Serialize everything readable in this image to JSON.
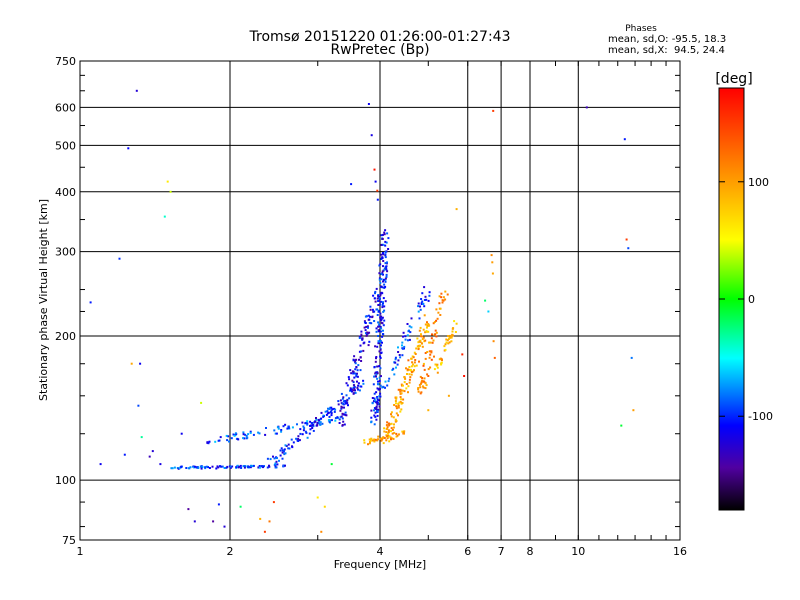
{
  "chart_data": {
    "type": "scatter",
    "title": "Tromsø 20151220 01:26:00-01:27:43",
    "subtitle": "RwPretec (Bp)",
    "xlabel": "Frequency [MHz]",
    "ylabel": "Stationary phase Virtual Height [km]",
    "x_scale": "log",
    "y_scale": "log",
    "xlim": [
      1,
      16
    ],
    "ylim": [
      75,
      750
    ],
    "x_ticks": [
      1,
      2,
      4,
      6,
      8,
      10,
      16
    ],
    "x_ticks_labels": [
      "1",
      "2",
      "4",
      "6",
      "8",
      "10",
      "16"
    ],
    "x_minor_ticks": [
      7
    ],
    "x_minor_labels": [
      "7"
    ],
    "y_ticks": [
      75,
      100,
      200,
      300,
      400,
      500,
      600,
      750
    ],
    "y_ticks_labels": [
      "75",
      "100",
      "200",
      "300",
      "400",
      "500",
      "600",
      "750"
    ],
    "grid": true,
    "phase_box": {
      "title": "Phases",
      "line1": "mean, sd,O: -95.5, 18.3",
      "line2": "mean, sd,X:  94.5, 24.4"
    },
    "colorbar": {
      "label": "[deg]",
      "min": -180,
      "max": 180,
      "ticks": [
        100,
        0,
        -100
      ],
      "ticks_labels": [
        "100",
        "0",
        "-100"
      ]
    },
    "series": [
      {
        "traces": [
          {
            "f_start": 1.5,
            "f_end": 2.6,
            "h_start": 106,
            "h_end": 107,
            "n": 90,
            "spread": 0.012,
            "phase": -95
          },
          {
            "f_start": 1.8,
            "f_end": 3.4,
            "h_start": 120,
            "h_end": 135,
            "n": 90,
            "spread": 0.035,
            "phase": -90
          },
          {
            "f_start": 2.4,
            "f_end": 3.7,
            "h_start": 108,
            "h_end": 160,
            "n": 120,
            "spread": 0.05,
            "phase": -100
          },
          {
            "f_start": 3.3,
            "f_end": 4.0,
            "h_start": 130,
            "h_end": 250,
            "n": 140,
            "spread": 0.07,
            "phase": -110
          },
          {
            "f_start": 3.9,
            "f_end": 4.1,
            "h_start": 130,
            "h_end": 330,
            "n": 200,
            "spread": 0.06,
            "phase": -105
          },
          {
            "f_start": 4.0,
            "f_end": 5.0,
            "h_start": 150,
            "h_end": 250,
            "n": 70,
            "spread": 0.06,
            "phase": -95
          }
        ]
      },
      {
        "traces": [
          {
            "f_start": 3.7,
            "f_end": 4.5,
            "h_start": 120,
            "h_end": 125,
            "n": 45,
            "spread": 0.03,
            "phase": 100
          },
          {
            "f_start": 4.1,
            "f_end": 5.0,
            "h_start": 122,
            "h_end": 215,
            "n": 150,
            "spread": 0.06,
            "phase": 95
          },
          {
            "f_start": 4.8,
            "f_end": 5.4,
            "h_start": 150,
            "h_end": 250,
            "n": 70,
            "spread": 0.06,
            "phase": 110
          },
          {
            "f_start": 5.2,
            "f_end": 5.7,
            "h_start": 170,
            "h_end": 215,
            "n": 40,
            "spread": 0.04,
            "phase": 90
          }
        ]
      },
      {
        "points": [
          [
            1.05,
            235,
            -100
          ],
          [
            1.1,
            108,
            -110
          ],
          [
            1.2,
            290,
            -95
          ],
          [
            1.23,
            113,
            -100
          ],
          [
            1.25,
            493,
            -105
          ],
          [
            1.27,
            175,
            95
          ],
          [
            1.3,
            650,
            -120
          ],
          [
            1.31,
            143,
            -90
          ],
          [
            1.32,
            175,
            -110
          ],
          [
            1.33,
            123,
            -30
          ],
          [
            1.38,
            112,
            -130
          ],
          [
            1.4,
            115,
            -120
          ],
          [
            1.45,
            108,
            -115
          ],
          [
            1.48,
            355,
            -40
          ],
          [
            1.5,
            420,
            60
          ],
          [
            1.52,
            400,
            40
          ],
          [
            1.6,
            125,
            -110
          ],
          [
            1.65,
            87,
            -140
          ],
          [
            1.7,
            82,
            -120
          ],
          [
            1.75,
            145,
            40
          ],
          [
            1.85,
            82,
            -140
          ],
          [
            1.9,
            89,
            -100
          ],
          [
            1.95,
            80,
            -120
          ],
          [
            2.1,
            88,
            -20
          ],
          [
            2.3,
            83,
            90
          ],
          [
            2.35,
            78,
            150
          ],
          [
            2.4,
            82,
            120
          ],
          [
            2.45,
            90,
            150
          ],
          [
            3.0,
            92,
            60
          ],
          [
            3.05,
            78,
            110
          ],
          [
            3.1,
            88,
            70
          ],
          [
            3.2,
            108,
            -10
          ],
          [
            3.8,
            610,
            -110
          ],
          [
            3.85,
            525,
            -115
          ],
          [
            3.9,
            445,
            170
          ],
          [
            3.92,
            420,
            -110
          ],
          [
            3.95,
            402,
            150
          ],
          [
            3.96,
            385,
            -100
          ],
          [
            3.5,
            415,
            -100
          ],
          [
            5.7,
            368,
            90
          ],
          [
            5.85,
            183,
            160
          ],
          [
            5.9,
            165,
            170
          ],
          [
            6.5,
            237,
            -20
          ],
          [
            6.6,
            225,
            -60
          ],
          [
            6.7,
            295,
            110
          ],
          [
            6.72,
            285,
            100
          ],
          [
            6.74,
            270,
            95
          ],
          [
            6.75,
            590,
            150
          ],
          [
            6.76,
            195,
            110
          ],
          [
            6.8,
            180,
            130
          ],
          [
            10.4,
            600,
            -130
          ],
          [
            12.4,
            515,
            -100
          ],
          [
            12.5,
            318,
            150
          ],
          [
            12.6,
            305,
            -90
          ],
          [
            12.8,
            180,
            -80
          ],
          [
            12.9,
            140,
            100
          ],
          [
            12.2,
            130,
            -10
          ],
          [
            5.5,
            150,
            95
          ],
          [
            5.0,
            140,
            90
          ]
        ]
      }
    ]
  }
}
